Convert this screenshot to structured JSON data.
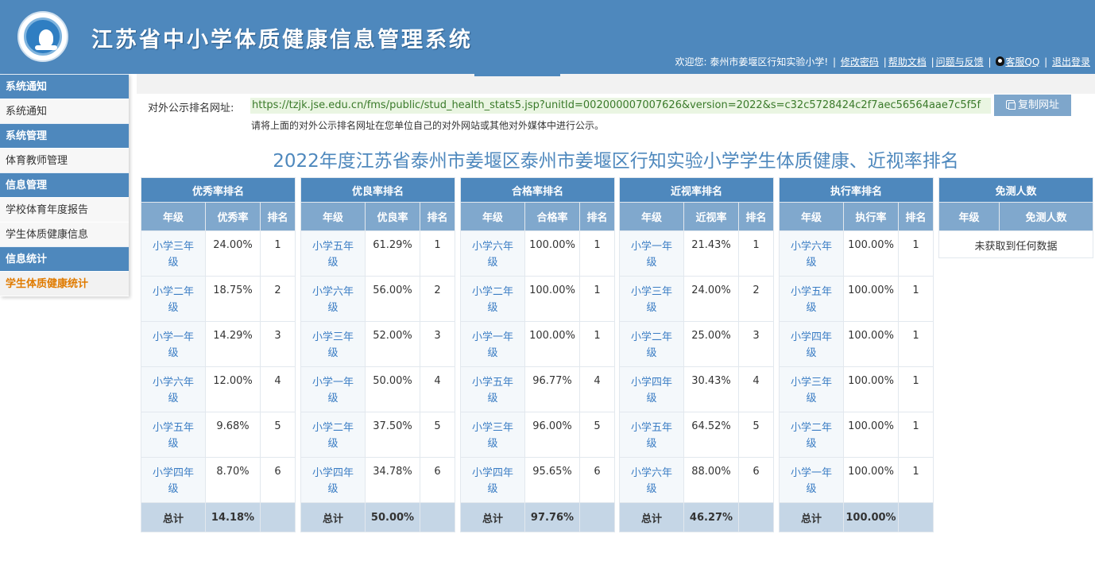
{
  "header": {
    "title": "江苏省中小学体质健康信息管理系统",
    "welcome": "欢迎您: 泰州市姜堰区行知实验小学!",
    "links": [
      "修改密码",
      "帮助文档",
      "问题与反馈"
    ],
    "qq": "客服QQ",
    "logout": "退出登录"
  },
  "sidebar": [
    {
      "head": "系统通知",
      "items": [
        "系统通知"
      ]
    },
    {
      "head": "系统管理",
      "items": [
        "体育教师管理"
      ]
    },
    {
      "head": "信息管理",
      "items": [
        "学校体育年度报告",
        "学生体质健康信息"
      ]
    },
    {
      "head": "信息统计",
      "items": [
        "学生体质健康统计"
      ]
    }
  ],
  "url": {
    "label": "对外公示排名网址:",
    "value": "https://tzjk.jse.edu.cn/fms/public/stud_health_stats5.jsp?unitId=002000007007626&version=2022&s=c32c5728424c2f7aec56564aae7c5f5f",
    "copy_label": "复制网址",
    "note": "请将上面的对外公示排名网址在您单位自己的对外网站或其他对外媒体中进行公示。"
  },
  "page_title": "2022年度江苏省泰州市姜堰区泰州市姜堰区行知实验小学学生体质健康、近视率排名",
  "tables": [
    {
      "title": "优秀率排名",
      "cols": [
        "年级",
        "优秀率",
        "排名"
      ],
      "rows": [
        [
          "小学三年级",
          "24.00%",
          "1"
        ],
        [
          "小学二年级",
          "18.75%",
          "2"
        ],
        [
          "小学一年级",
          "14.29%",
          "3"
        ],
        [
          "小学六年级",
          "12.00%",
          "4"
        ],
        [
          "小学五年级",
          "9.68%",
          "5"
        ],
        [
          "小学四年级",
          "8.70%",
          "6"
        ]
      ],
      "total": [
        "总计",
        "14.18%",
        ""
      ]
    },
    {
      "title": "优良率排名",
      "cols": [
        "年级",
        "优良率",
        "排名"
      ],
      "rows": [
        [
          "小学五年级",
          "61.29%",
          "1"
        ],
        [
          "小学六年级",
          "56.00%",
          "2"
        ],
        [
          "小学三年级",
          "52.00%",
          "3"
        ],
        [
          "小学一年级",
          "50.00%",
          "4"
        ],
        [
          "小学二年级",
          "37.50%",
          "5"
        ],
        [
          "小学四年级",
          "34.78%",
          "6"
        ]
      ],
      "total": [
        "总计",
        "50.00%",
        ""
      ]
    },
    {
      "title": "合格率排名",
      "cols": [
        "年级",
        "合格率",
        "排名"
      ],
      "rows": [
        [
          "小学六年级",
          "100.00%",
          "1"
        ],
        [
          "小学二年级",
          "100.00%",
          "1"
        ],
        [
          "小学一年级",
          "100.00%",
          "1"
        ],
        [
          "小学五年级",
          "96.77%",
          "4"
        ],
        [
          "小学三年级",
          "96.00%",
          "5"
        ],
        [
          "小学四年级",
          "95.65%",
          "6"
        ]
      ],
      "total": [
        "总计",
        "97.76%",
        ""
      ]
    },
    {
      "title": "近视率排名",
      "cols": [
        "年级",
        "近视率",
        "排名"
      ],
      "rows": [
        [
          "小学一年级",
          "21.43%",
          "1"
        ],
        [
          "小学三年级",
          "24.00%",
          "2"
        ],
        [
          "小学二年级",
          "25.00%",
          "3"
        ],
        [
          "小学四年级",
          "30.43%",
          "4"
        ],
        [
          "小学五年级",
          "64.52%",
          "5"
        ],
        [
          "小学六年级",
          "88.00%",
          "6"
        ]
      ],
      "total": [
        "总计",
        "46.27%",
        ""
      ]
    },
    {
      "title": "执行率排名",
      "cols": [
        "年级",
        "执行率",
        "排名"
      ],
      "rows": [
        [
          "小学六年级",
          "100.00%",
          "1"
        ],
        [
          "小学五年级",
          "100.00%",
          "1"
        ],
        [
          "小学四年级",
          "100.00%",
          "1"
        ],
        [
          "小学三年级",
          "100.00%",
          "1"
        ],
        [
          "小学二年级",
          "100.00%",
          "1"
        ],
        [
          "小学一年级",
          "100.00%",
          "1"
        ]
      ],
      "total": [
        "总计",
        "100.00%",
        ""
      ]
    }
  ],
  "exempt": {
    "title": "免测人数",
    "cols": [
      "年级",
      "免测人数"
    ],
    "empty": "未获取到任何数据"
  },
  "colors": {
    "primary": "#4e88bd",
    "subheader": "#80a8cd",
    "total_row": "#c5d6e6",
    "active_menu": "#e07b00",
    "link": "#3b7dc4"
  }
}
